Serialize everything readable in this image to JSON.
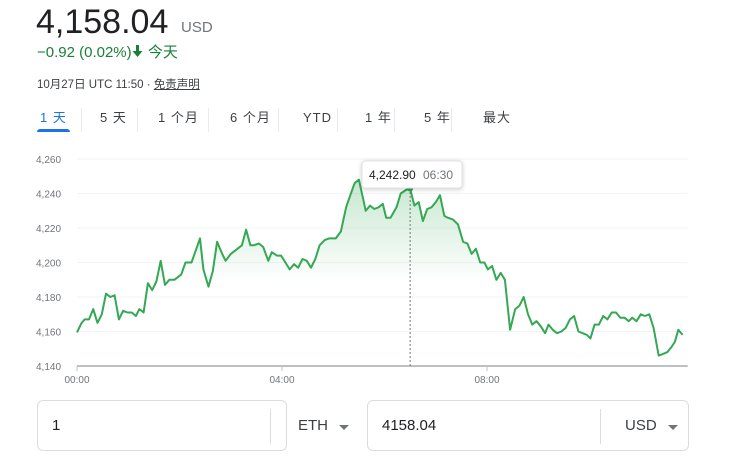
{
  "quote": {
    "price": "4,158.04",
    "currency": "USD",
    "change": "−0.92 (0.02%)",
    "change_direction_icon": "arrow-down-icon",
    "period": "今天",
    "timestamp": "10月27日 UTC 11:50 · ",
    "disclaimer": "免责声明",
    "change_color": "#188038"
  },
  "tabs": [
    {
      "label": "1 天",
      "active": true
    },
    {
      "label": "5 天"
    },
    {
      "label": "1 个月"
    },
    {
      "label": "6 个月"
    },
    {
      "label": "YTD"
    },
    {
      "label": "1 年"
    },
    {
      "label": "5 年"
    },
    {
      "label": "最大"
    }
  ],
  "chart_data": {
    "type": "line",
    "line_color": "#34a853",
    "fill": "gradient",
    "grid": true,
    "ylim": [
      4140,
      4260
    ],
    "yticks": [
      "4,140",
      "4,160",
      "4,180",
      "4,200",
      "4,220",
      "4,240",
      "4,260"
    ],
    "ytick_values": [
      4140,
      4160,
      4180,
      4200,
      4220,
      4240,
      4260
    ],
    "xlim": [
      "00:00",
      "11:55"
    ],
    "xticks": [
      "00:00",
      "04:00",
      "08:00"
    ],
    "tooltip": {
      "value": "4,242.90",
      "time": "06:30"
    },
    "x": [
      "00:00",
      "00:05",
      "00:09",
      "00:14",
      "00:19",
      "00:24",
      "00:29",
      "00:34",
      "00:39",
      "00:44",
      "00:49",
      "00:54",
      "00:59",
      "01:04",
      "01:09",
      "01:13",
      "01:18",
      "01:23",
      "01:28",
      "01:33",
      "01:38",
      "01:43",
      "01:48",
      "01:54",
      "02:02",
      "02:07",
      "02:14",
      "02:24",
      "02:28",
      "02:34",
      "02:39",
      "02:44",
      "02:50",
      "02:54",
      "03:00",
      "03:08",
      "03:13",
      "03:18",
      "03:23",
      "03:27",
      "03:33",
      "03:38",
      "03:44",
      "03:48",
      "03:54",
      "03:59",
      "04:04",
      "04:09",
      "04:14",
      "04:19",
      "04:24",
      "04:29",
      "04:34",
      "04:39",
      "04:44",
      "04:50",
      "04:55",
      "05:03",
      "05:09",
      "05:15",
      "05:20",
      "05:25",
      "05:30",
      "05:35",
      "05:38",
      "05:43",
      "05:48",
      "05:53",
      "05:58",
      "06:02",
      "06:07",
      "06:14",
      "06:19",
      "06:25",
      "06:30",
      "06:35",
      "06:40",
      "06:45",
      "06:50",
      "06:55",
      "07:00",
      "07:05",
      "07:10",
      "07:14",
      "07:20",
      "07:26",
      "07:32",
      "07:37",
      "07:42",
      "07:47",
      "07:52",
      "07:57",
      "08:01",
      "08:06",
      "08:11",
      "08:16",
      "08:21",
      "08:27",
      "08:33",
      "08:38",
      "08:43",
      "08:48",
      "08:53",
      "08:58",
      "09:03",
      "09:08",
      "09:12",
      "09:17",
      "09:22",
      "09:27",
      "09:32",
      "09:37",
      "09:42",
      "09:47",
      "09:52",
      "09:57",
      "10:01",
      "10:06",
      "10:11",
      "10:16",
      "10:21",
      "10:26",
      "10:31",
      "10:36",
      "10:41",
      "10:46",
      "10:50",
      "10:55",
      "11:00",
      "11:05",
      "11:10",
      "11:15",
      "11:21",
      "11:26",
      "11:31",
      "11:36",
      "11:40",
      "11:44",
      "11:49"
    ],
    "values": [
      4159.5,
      4164.7,
      4167,
      4167,
      4173,
      4165,
      4170,
      4182,
      4180,
      4181,
      4167,
      4172,
      4171,
      4171,
      4169,
      4173,
      4171,
      4188,
      4184,
      4189,
      4201,
      4187,
      4190,
      4190,
      4193,
      4200,
      4200,
      4214,
      4196,
      4186,
      4195,
      4212,
      4205,
      4201,
      4205,
      4208,
      4210,
      4219,
      4210,
      4210,
      4211,
      4209,
      4201,
      4206,
      4204,
      4204,
      4200,
      4196,
      4199,
      4197,
      4202,
      4201,
      4197,
      4202,
      4210,
      4213,
      4214,
      4214,
      4218,
      4232,
      4239,
      4246,
      4248,
      4237,
      4230,
      4233,
      4231,
      4232,
      4234,
      4226,
      4226,
      4232,
      4240,
      4242,
      4242.9,
      4233,
      4235,
      4224,
      4231,
      4232,
      4235,
      4239,
      4227,
      4226,
      4225,
      4222,
      4212,
      4211,
      4205,
      4208,
      4200,
      4200,
      4196,
      4198,
      4190,
      4194,
      4190,
      4161,
      4173,
      4175,
      4180,
      4170,
      4164,
      4166,
      4163,
      4159,
      4164,
      4161,
      4159,
      4160,
      4162,
      4167,
      4169,
      4160,
      4159,
      4158,
      4156,
      4164,
      4164,
      4169,
      4167,
      4171,
      4171,
      4168,
      4168,
      4166,
      4168,
      4166,
      4170,
      4169,
      4170,
      4162,
      4146,
      4147,
      4148,
      4151,
      4154,
      4161,
      4158
    ]
  },
  "converter": {
    "from_amount": "1",
    "from_unit": "ETH",
    "to_amount": "4158.04",
    "to_unit": "USD"
  }
}
